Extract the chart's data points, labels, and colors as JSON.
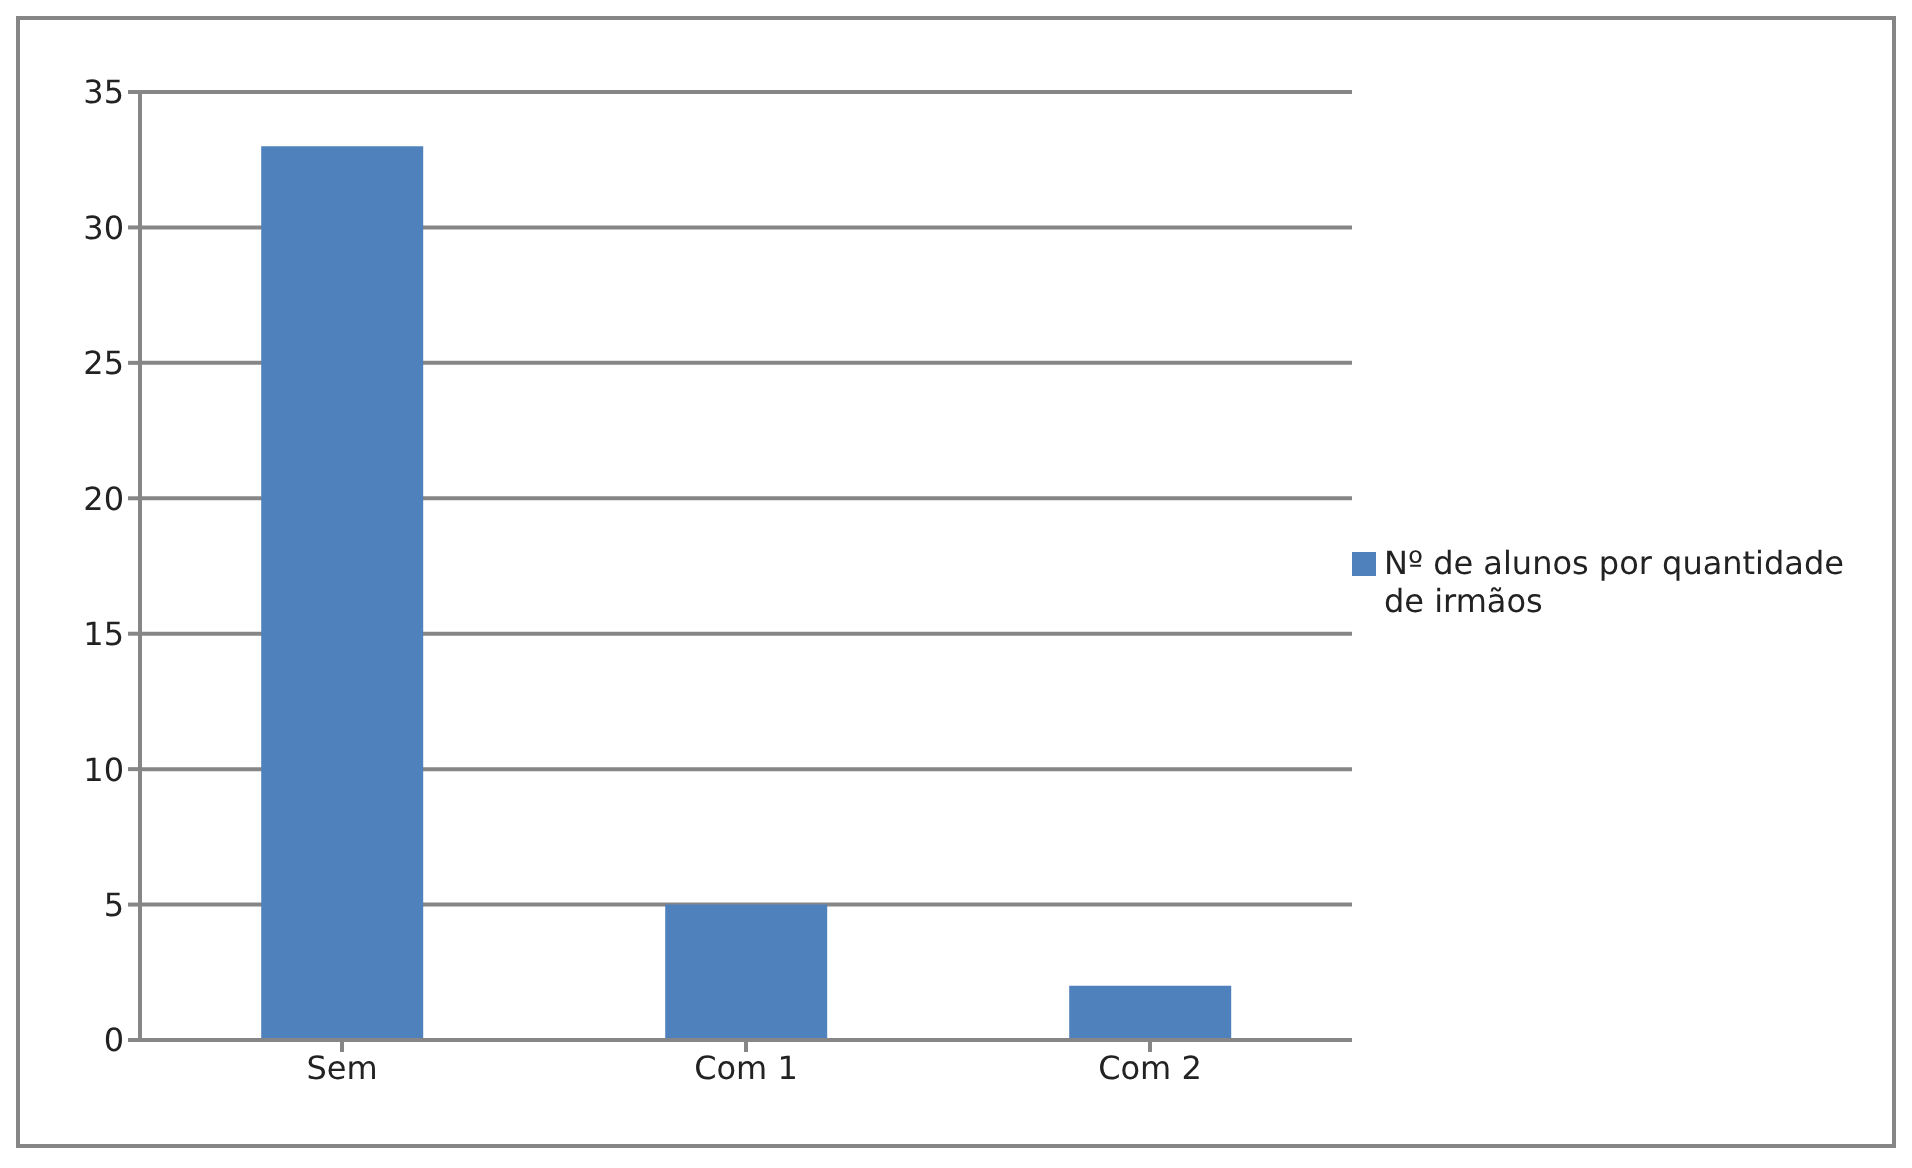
{
  "chart_data": {
    "type": "bar",
    "categories": [
      "Sem",
      "Com 1",
      "Com 2"
    ],
    "series": [
      {
        "name": "Nº de alunos por quantidade de irmãos",
        "color": "#4f81bd",
        "values": [
          33,
          5,
          2
        ]
      }
    ],
    "ylim": [
      0,
      35
    ],
    "yticks": [
      0,
      5,
      10,
      15,
      20,
      25,
      30,
      35
    ],
    "grid": "y",
    "legend": "right"
  }
}
